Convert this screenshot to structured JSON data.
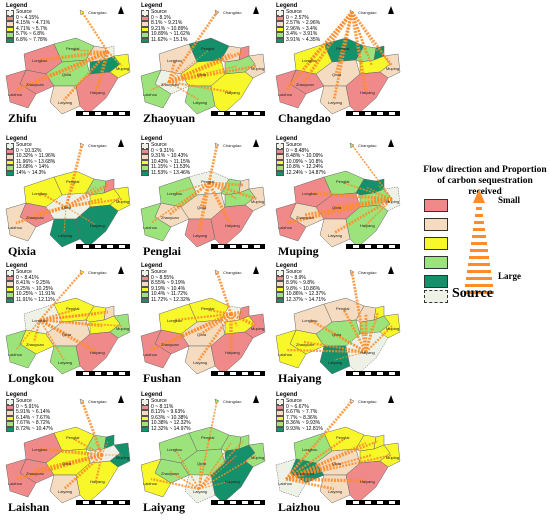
{
  "legend_title": "Legend",
  "legend_source": "Source",
  "place_labels": {
    "changdao": "Changdao",
    "penglai": "Penglai",
    "longkou": "Longkou",
    "zhaoyuan": "Zhaoyuan",
    "laizhou": "Laizhou",
    "muping": "Muping",
    "laiyang": "Laiyang",
    "haiyang": "Haiyang",
    "qixia": "Qixia"
  },
  "panels": [
    {
      "title": "Zhifu",
      "ranges": [
        "0 ~ 4.15%",
        "4.15% ~ 4.71%",
        "4.71% ~ 5.7%",
        "5.7% ~ 6.8%",
        "6.8% ~ 7.78%"
      ]
    },
    {
      "title": "Zhaoyuan",
      "ranges": [
        "0 ~ 8.1%",
        "8.1% ~ 9.21%",
        "9.21% ~ 10.89%",
        "10.89% ~ 11.62%",
        "11.62% ~ 15.1%"
      ]
    },
    {
      "title": "Changdao",
      "ranges": [
        "0 ~ 2.57%",
        "2.57% ~ 2.96%",
        "2.96% ~ 3.4%",
        "3.4% ~ 3.91%",
        "3.91% ~ 4.35%"
      ]
    },
    {
      "title": "Qixia",
      "ranges": [
        "0 ~ 10.32%",
        "10.32% ~ 11.96%",
        "11.96% ~ 13.68%",
        "13.68% ~ 14%",
        "14% ~ 14.3%"
      ]
    },
    {
      "title": "Penglai",
      "ranges": [
        "0 ~ 9.31%",
        "9.31% ~ 10.43%",
        "10.43% ~ 11.15%",
        "11.15% ~ 11.53%",
        "11.53% ~ 13.46%"
      ]
    },
    {
      "title": "Muping",
      "ranges": [
        "0 ~ 8.48%",
        "8.48% ~ 10.09%",
        "10.09% ~ 10.8%",
        "10.8% ~ 12.24%",
        "12.24% ~ 14.87%"
      ]
    },
    {
      "title": "Longkou",
      "ranges": [
        "0 ~ 8.41%",
        "8.41% ~ 9.25%",
        "9.25% ~ 10.25%",
        "10.25% ~ 11.91%",
        "11.91% ~ 12.11%"
      ]
    },
    {
      "title": "Fushan",
      "ranges": [
        "0 ~ 8.55%",
        "8.55% ~ 9.19%",
        "9.19% ~ 10.4%",
        "10.4% ~ 11.72%",
        "11.72% ~ 12.32%"
      ]
    },
    {
      "title": "Haiyang",
      "ranges": [
        "0 ~ 8.9%",
        "8.9% ~ 9.8%",
        "9.8% ~ 10.86%",
        "10.86% ~ 12.37%",
        "12.37% ~ 14.71%"
      ]
    },
    {
      "title": "Laishan",
      "ranges": [
        "0 ~ 5.91%",
        "5.91% ~ 6.14%",
        "6.14% ~ 7.67%",
        "7.67% ~ 8.72%",
        "8.72% ~ 10.47%"
      ]
    },
    {
      "title": "Laiyang",
      "ranges": [
        "0 ~ 8.11%",
        "8.11% ~ 9.63%",
        "9.63% ~ 10.38%",
        "10.38% ~ 12.32%",
        "12.32% ~ 14.97%"
      ]
    },
    {
      "title": "Laizhou",
      "ranges": [
        "0 ~ 6.67%",
        "6.67% ~ 7.7%",
        "7.7% ~ 8.36%",
        "8.36% ~ 9.93%",
        "9.93% ~ 12.81%"
      ]
    }
  ],
  "class_colors": [
    "#f08a8a",
    "#f5dcc0",
    "#f7f72a",
    "#9be37a",
    "#14906a"
  ],
  "source_color": "#eef2e6",
  "arrow_color": "#ff8c2a",
  "big_legend": {
    "title_line1": "Flow direction and Proportion",
    "title_line2": "of carbon sequestration  received",
    "small": "Small",
    "large": "Large",
    "source": "Source"
  }
}
